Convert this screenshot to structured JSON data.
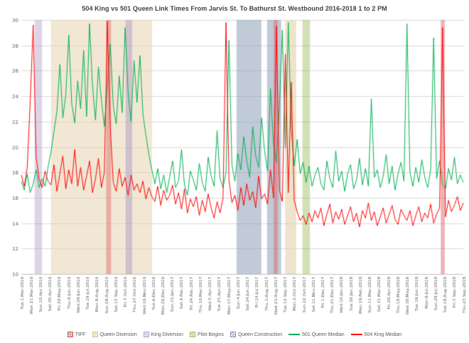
{
  "title": "504 King vs 501 Queen Link Times From Jarvis St. To Bathurst St. Westbound 2016-2018 1 to 2 PM",
  "legend": [
    {
      "label": "TIFF",
      "type": "patch",
      "color": "#c0504d"
    },
    {
      "label": "Queen Diversion",
      "type": "patch",
      "color": "#d9c089"
    },
    {
      "label": "King Diversion",
      "type": "patch",
      "color": "#b3a2c7"
    },
    {
      "label": "Pilot Begins",
      "type": "patch",
      "color": "#9bbb59"
    },
    {
      "label": "Queen Construction",
      "type": "patch",
      "color": "#8496b0"
    },
    {
      "label": "501 Queen Median",
      "type": "line",
      "color": "#00b050"
    },
    {
      "label": "504 King Median",
      "type": "line",
      "color": "#ff0000"
    }
  ],
  "chart_data": {
    "type": "line",
    "title": "504 King vs 501 Queen Link Times From Jarvis St. To Bathurst St. Westbound 2016-2018 1 to 2 PM",
    "xlabel": "",
    "ylabel": "",
    "ylim": [
      10,
      30
    ],
    "ytick_step": 2,
    "grid": "horizontal",
    "legend_position": "bottom",
    "x_labels": [
      "Tue.1.Mar.2016",
      "Mon.21.Mar.2016",
      "Sun.10.Apr.2016",
      "Sat.30.Apr.2016",
      "Fri.20.May.2016",
      "Thu.9.Jun.2016",
      "Wed.29.Jun.2016",
      "Tue.19.Jul.2016",
      "Mon.8.Aug.2016",
      "Sun.28.Aug.2016",
      "Sat.17.Sep.2016",
      "Fri.7.Oct.2016",
      "Thu.27.Oct.2016",
      "Wed.16.Nov.2016",
      "Tue.6.Dec.2016",
      "Mon.26.Dec.2016",
      "Sun.15.Jan.2017",
      "Sat.4.Feb.2017",
      "Fri.24.Feb.2017",
      "Thu.16.Mar.2017",
      "Wed.5.Apr.2017",
      "Tue.25.Apr.2017",
      "Mon.15.May.2017",
      "Sun.4.Jun.2017",
      "Sat.24.Jun.2017",
      "Fri.14.Jul.2017",
      "Thu.3.Aug.2017",
      "Wed.23.Aug.2017",
      "Tue.12.Sep.2017",
      "Mon.2.Oct.2017",
      "Sun.22.Oct.2017",
      "Sat.11.Nov.2017",
      "Fri.1.Dec.2017",
      "Thu.21.Dec.2017",
      "Wed.10.Jan.2018",
      "Tue.30.Jan.2018",
      "Mon.19.Feb.2018",
      "Sun.11.Mar.2018",
      "Sat.31.Mar.2018",
      "Fri.20.Apr.2018",
      "Thu.10.May.2018",
      "Wed.30.May.2018",
      "Tue.19.Jun.2018",
      "Mon.9.Jul.2018",
      "Sun.29.Jul.2018",
      "Sat.18.Aug.2018",
      "Fri.7.Sep.2018",
      "Thu.27.Sep.2018"
    ],
    "regions": [
      {
        "name": "king-diversion-apr-2016",
        "label": "King Diversion",
        "start": 0.03,
        "end": 0.047,
        "color": "#b3a2c7",
        "opacity": 0.45
      },
      {
        "name": "queen-diversion-2016",
        "label": "Queen Diversion",
        "start": 0.067,
        "end": 0.296,
        "color": "#e3d0a9",
        "opacity": 0.5
      },
      {
        "name": "tiff-2016",
        "label": "TIFF",
        "start": 0.192,
        "end": 0.203,
        "color": "#e06666",
        "opacity": 0.45
      },
      {
        "name": "king-diversion-late-2016",
        "label": "King Diversion",
        "start": 0.236,
        "end": 0.251,
        "color": "#b3a2c7",
        "opacity": 0.55
      },
      {
        "name": "queen-construction-a",
        "label": "Queen Construction",
        "start": 0.487,
        "end": 0.543,
        "color": "#8496b0",
        "opacity": 0.5
      },
      {
        "name": "queen-construction-b",
        "label": "Queen Construction",
        "start": 0.556,
        "end": 0.588,
        "color": "#8496b0",
        "opacity": 0.5
      },
      {
        "name": "tiff-2017",
        "label": "TIFF",
        "start": 0.571,
        "end": 0.58,
        "color": "#e06666",
        "opacity": 0.5
      },
      {
        "name": "queen-diversion-2017",
        "label": "Queen Diversion",
        "start": 0.597,
        "end": 0.622,
        "color": "#e3d0a9",
        "opacity": 0.6
      },
      {
        "name": "pilot-begins",
        "label": "Pilot Begins",
        "start": 0.636,
        "end": 0.653,
        "color": "#9bbb59",
        "opacity": 0.45
      },
      {
        "name": "tiff-2018",
        "label": "TIFF",
        "start": 0.949,
        "end": 0.958,
        "color": "#e06666",
        "opacity": 0.5
      }
    ],
    "series": [
      {
        "name": "501 Queen Median",
        "color": "#00b050",
        "values": [
          17.3,
          16.6,
          17.9,
          16.4,
          17.1,
          18.2,
          16.8,
          17.5,
          16.9,
          18.4,
          19.6,
          21.2,
          22.8,
          26.5,
          22.3,
          24.1,
          28.8,
          23.4,
          21.9,
          25.2,
          23.0,
          27.6,
          22.4,
          29.7,
          24.8,
          22.1,
          26.3,
          23.7,
          21.6,
          24.9,
          28.1,
          23.2,
          21.8,
          25.6,
          22.7,
          29.4,
          24.3,
          22.0,
          26.8,
          23.5,
          27.2,
          22.6,
          20.9,
          19.4,
          18.2,
          17.1,
          18.3,
          16.7,
          17.8,
          16.4,
          17.6,
          18.9,
          16.8,
          17.3,
          19.8,
          17.0,
          16.2,
          18.1,
          17.4,
          16.6,
          18.7,
          17.2,
          16.5,
          19.2,
          17.7,
          16.9,
          21.3,
          17.5,
          16.8,
          18.0,
          28.4,
          18.6,
          17.3,
          19.5,
          18.2,
          20.8,
          18.9,
          17.6,
          21.6,
          19.3,
          18.4,
          22.3,
          19.7,
          18.1,
          24.6,
          20.2,
          18.8,
          23.1,
          29.2,
          19.9,
          29.8,
          21.4,
          18.5,
          20.6,
          17.9,
          18.8,
          17.2,
          18.5,
          16.9,
          17.8,
          18.4,
          17.1,
          16.6,
          18.9,
          17.5,
          16.8,
          19.7,
          17.3,
          18.1,
          16.5,
          17.9,
          18.6,
          16.7,
          17.4,
          19.1,
          17.0,
          18.3,
          16.9,
          23.8,
          17.6,
          18.2,
          16.8,
          17.7,
          19.4,
          17.1,
          18.5,
          16.6,
          17.9,
          18.8,
          17.3,
          29.7,
          18.0,
          16.9,
          18.4,
          17.2,
          19.0,
          17.6,
          16.8,
          18.2,
          28.6,
          17.5,
          18.9,
          17.0,
          16.7,
          18.3,
          17.4,
          19.2,
          17.1,
          17.8,
          17.2
        ]
      },
      {
        "name": "504 King Median",
        "color": "#ff0000",
        "values": [
          17.8,
          16.9,
          18.4,
          23.6,
          29.6,
          19.2,
          17.5,
          16.8,
          18.1,
          17.3,
          17.0,
          18.6,
          16.5,
          17.9,
          19.3,
          16.7,
          18.2,
          17.1,
          19.8,
          16.9,
          18.4,
          16.6,
          17.7,
          18.9,
          16.4,
          17.5,
          19.1,
          16.8,
          18.0,
          29.9,
          21.5,
          17.2,
          16.5,
          18.3,
          16.9,
          17.6,
          16.2,
          17.8,
          16.6,
          17.1,
          16.4,
          17.3,
          15.9,
          16.8,
          16.1,
          15.7,
          16.9,
          15.4,
          16.6,
          15.8,
          16.2,
          17.0,
          15.5,
          16.4,
          15.1,
          16.7,
          14.8,
          15.9,
          15.3,
          16.1,
          14.6,
          15.8,
          14.9,
          16.3,
          15.2,
          14.4,
          15.7,
          14.8,
          16.0,
          29.8,
          17.4,
          15.6,
          16.2,
          15.0,
          16.8,
          15.4,
          17.1,
          15.8,
          16.5,
          15.2,
          17.7,
          15.9,
          16.3,
          15.5,
          18.2,
          16.0,
          29.5,
          16.6,
          15.7,
          27.3,
          16.4,
          25.1,
          15.8,
          14.9,
          14.2,
          14.6,
          13.9,
          14.8,
          14.1,
          15.0,
          14.4,
          15.2,
          13.8,
          14.7,
          15.5,
          14.0,
          14.9,
          14.3,
          15.1,
          13.9,
          14.6,
          15.3,
          14.1,
          14.8,
          13.7,
          15.0,
          14.4,
          15.6,
          14.2,
          14.9,
          13.8,
          14.5,
          15.2,
          14.0,
          14.7,
          15.4,
          14.3,
          13.9,
          15.1,
          14.6,
          14.2,
          15.0,
          13.8,
          14.6,
          15.3,
          14.1,
          14.8,
          14.4,
          15.5,
          14.0,
          14.7,
          15.2,
          29.4,
          14.5,
          15.8,
          14.9,
          15.4,
          16.1,
          15.0,
          15.6
        ]
      }
    ]
  }
}
